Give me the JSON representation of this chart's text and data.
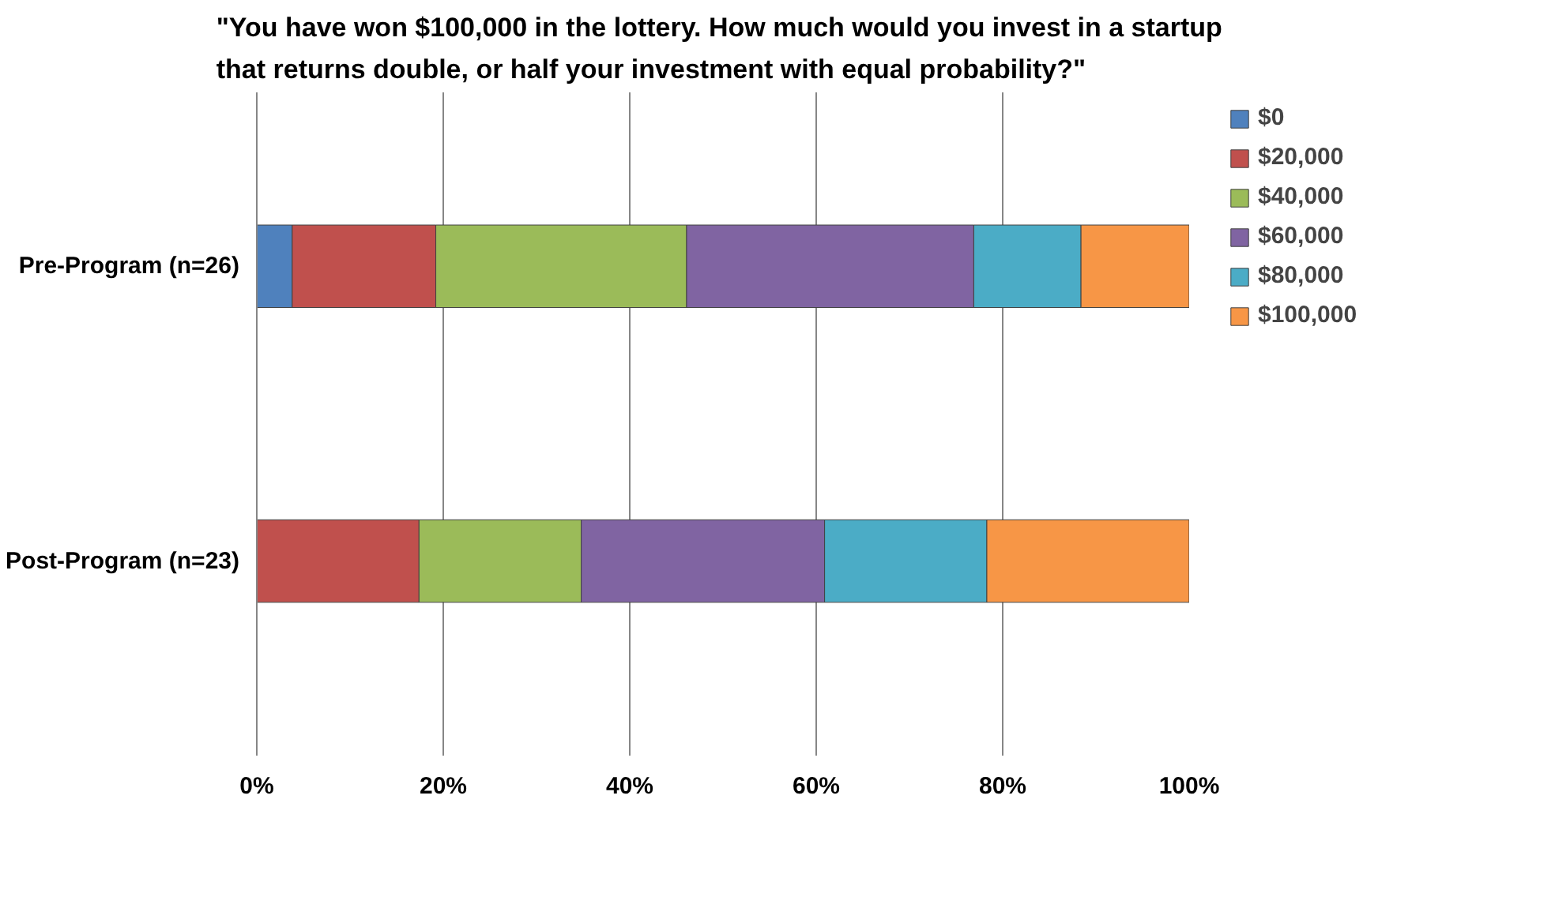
{
  "chart_data": {
    "type": "bar",
    "orientation": "horizontal",
    "stacked": true,
    "title": "\"You have won $100,000 in the lottery.  How much would you invest in a startup that returns double, or half your investment with equal probability?\"",
    "categories": [
      "Pre-Program (n=26)",
      "Post-Program (n=23)"
    ],
    "series": [
      {
        "name": "$0",
        "color": "#4f81bd",
        "values": [
          3.8,
          0
        ]
      },
      {
        "name": "$20,000",
        "color": "#c0504d",
        "values": [
          15.4,
          17.4
        ]
      },
      {
        "name": "$40,000",
        "color": "#9bbb59",
        "values": [
          26.9,
          17.4
        ]
      },
      {
        "name": "$60,000",
        "color": "#8064a2",
        "values": [
          30.8,
          26.1
        ]
      },
      {
        "name": "$80,000",
        "color": "#4bacc6",
        "values": [
          11.5,
          17.4
        ]
      },
      {
        "name": "$100,000",
        "color": "#f79646",
        "values": [
          11.6,
          21.7
        ]
      }
    ],
    "xlim": [
      0,
      100
    ],
    "xticks": [
      {
        "value": 0,
        "label": "0%"
      },
      {
        "value": 20,
        "label": "20%"
      },
      {
        "value": 40,
        "label": "40%"
      },
      {
        "value": 60,
        "label": "60%"
      },
      {
        "value": 80,
        "label": "80%"
      },
      {
        "value": 100,
        "label": "100%"
      }
    ],
    "grid": "x",
    "legend": "right"
  }
}
